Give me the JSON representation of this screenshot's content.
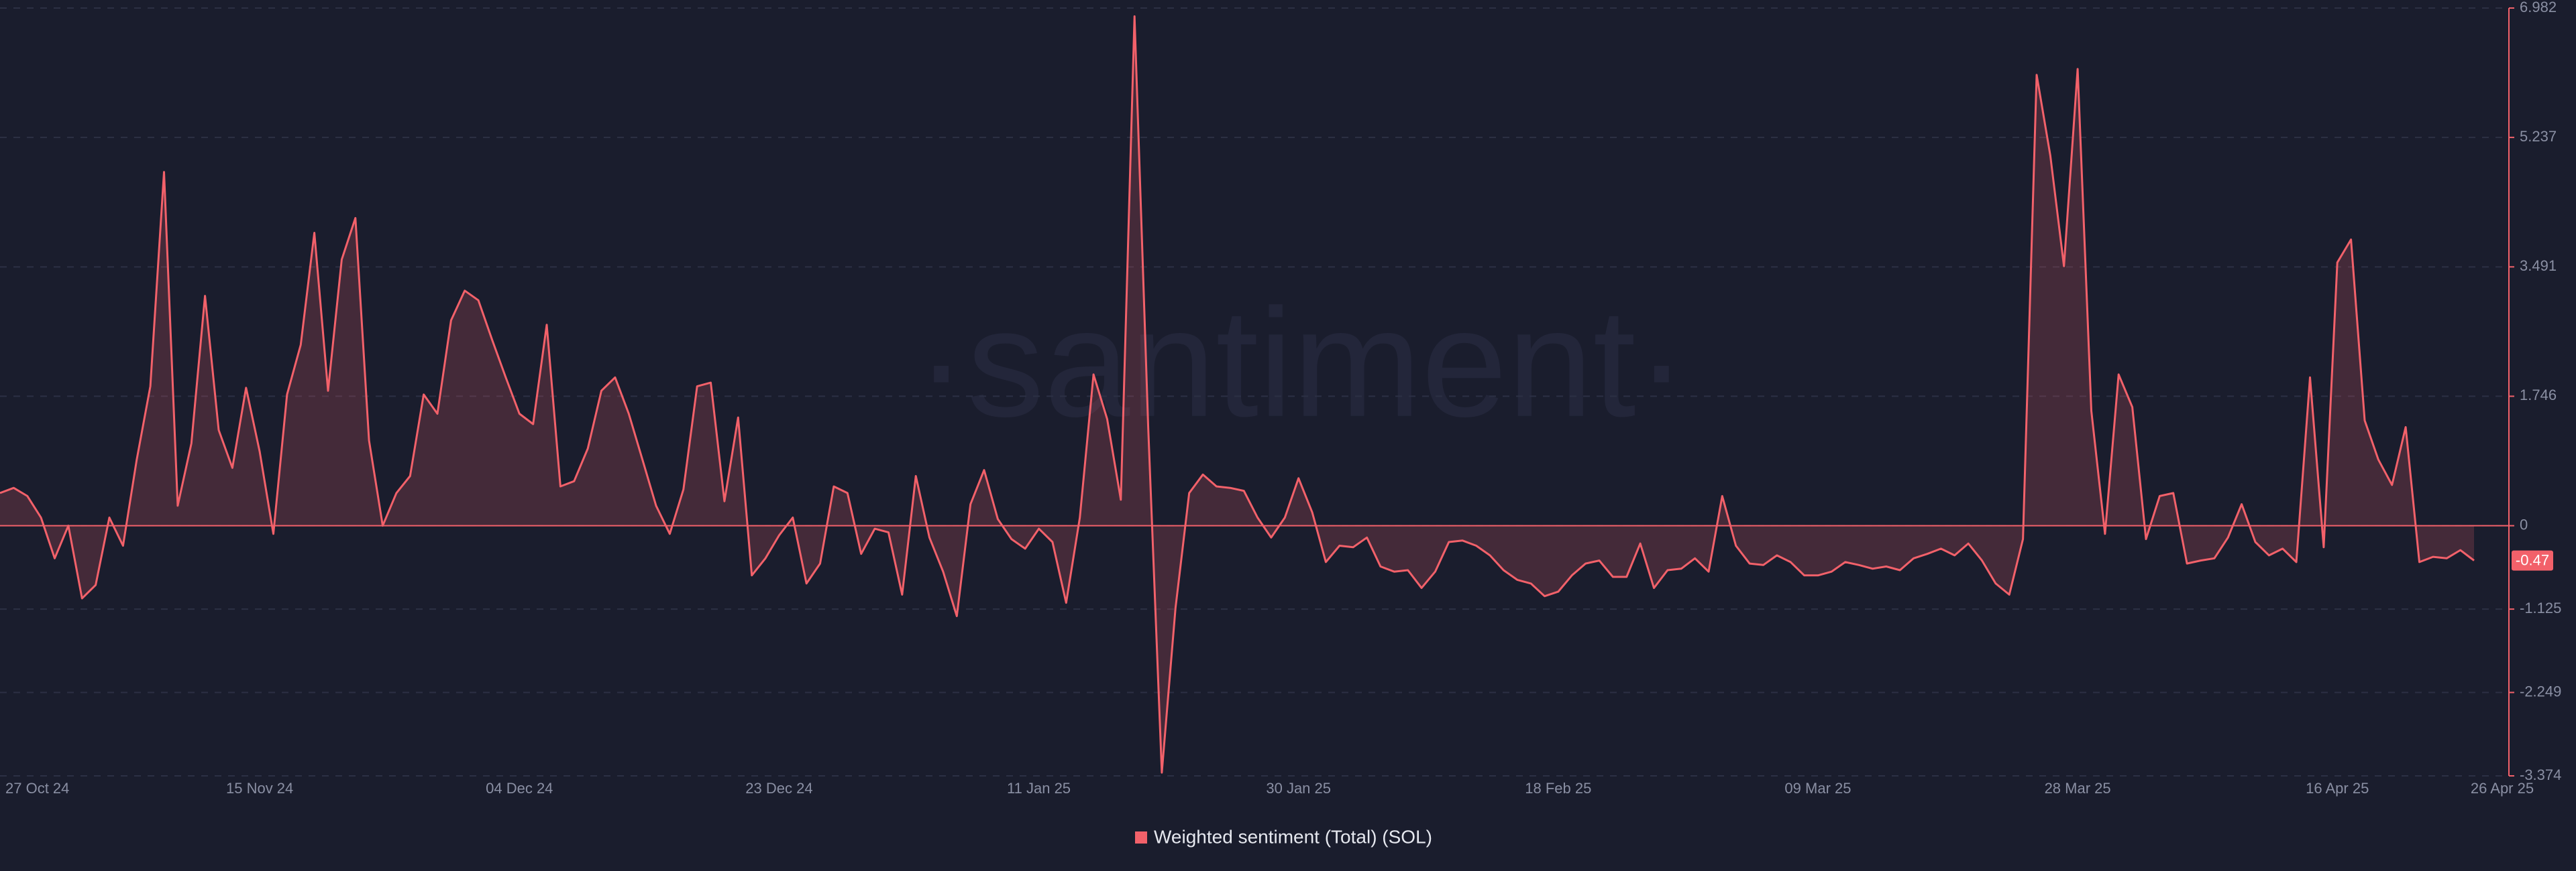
{
  "chart_data": {
    "type": "line",
    "watermark": "·santiment·",
    "categories": [
      "27 Oct 24",
      null,
      null,
      null,
      null,
      null,
      null,
      null,
      null,
      null,
      null,
      null,
      null,
      null,
      null,
      null,
      null,
      null,
      null,
      "15 Nov 24",
      null,
      null,
      null,
      null,
      null,
      null,
      null,
      null,
      null,
      null,
      null,
      null,
      null,
      null,
      null,
      null,
      null,
      null,
      "04 Dec 24",
      null,
      null,
      null,
      null,
      null,
      null,
      null,
      null,
      null,
      null,
      null,
      null,
      null,
      null,
      null,
      null,
      null,
      null,
      "23 Dec 24",
      null,
      null,
      null,
      null,
      null,
      null,
      null,
      null,
      null,
      null,
      null,
      null,
      null,
      null,
      null,
      null,
      null,
      null,
      "11 Jan 25",
      null,
      null,
      null,
      null,
      null,
      null,
      null,
      null,
      null,
      null,
      null,
      null,
      null,
      null,
      null,
      null,
      null,
      null,
      "30 Jan 25",
      null,
      null,
      null,
      null,
      null,
      null,
      null,
      null,
      null,
      null,
      null,
      null,
      null,
      null,
      null,
      null,
      null,
      null,
      "18 Feb 25",
      null,
      null,
      null,
      null,
      null,
      null,
      null,
      null,
      null,
      null,
      null,
      null,
      null,
      null,
      null,
      null,
      null,
      null,
      "09 Mar 25",
      null,
      null,
      null,
      null,
      null,
      null,
      null,
      null,
      null,
      null,
      null,
      null,
      null,
      null,
      null,
      null,
      null,
      null,
      "28 Mar 25",
      null,
      null,
      null,
      null,
      null,
      null,
      null,
      null,
      null,
      null,
      null,
      null,
      null,
      null,
      null,
      null,
      null,
      null,
      "16 Apr 25",
      null,
      null,
      null,
      null,
      null,
      null,
      null,
      null,
      null,
      "26 Apr 25"
    ],
    "series": [
      {
        "name": "Weighted sentiment (Total) (SOL)",
        "color": "#f2616a",
        "values": [
          0.44,
          0.51,
          0.4,
          0.11,
          -0.44,
          0,
          -0.98,
          -0.8,
          0.11,
          -0.27,
          0.89,
          1.88,
          4.77,
          0.27,
          1.11,
          3.1,
          1.29,
          0.78,
          1.86,
          1.0,
          -0.11,
          1.77,
          2.44,
          3.95,
          1.82,
          3.59,
          4.15,
          1.15,
          0,
          0.44,
          0.67,
          1.77,
          1.51,
          2.77,
          3.17,
          3.04,
          2.51,
          2.0,
          1.51,
          1.37,
          2.71,
          0.53,
          0.6,
          1.04,
          1.82,
          2.0,
          1.51,
          0.89,
          0.27,
          -0.11,
          0.49,
          1.88,
          1.93,
          0.33,
          1.46,
          -0.67,
          -0.44,
          -0.13,
          0.11,
          -0.78,
          -0.51,
          0.53,
          0.44,
          -0.38,
          -0.04,
          -0.09,
          -0.93,
          0.67,
          -0.16,
          -0.62,
          -1.22,
          0.29,
          0.75,
          0.09,
          -0.18,
          -0.31,
          -0.04,
          -0.22,
          -1.04,
          0.11,
          2.04,
          1.44,
          0.35,
          6.87,
          1.33,
          -3.33,
          -1.11,
          0.44,
          0.69,
          0.53,
          0.51,
          0.47,
          0.11,
          -0.16,
          0.11,
          0.64,
          0.18,
          -0.49,
          -0.27,
          -0.29,
          -0.16,
          -0.55,
          -0.62,
          -0.6,
          -0.84,
          -0.62,
          -0.22,
          -0.2,
          -0.27,
          -0.4,
          -0.6,
          -0.73,
          -0.78,
          -0.95,
          -0.89,
          -0.67,
          -0.51,
          -0.47,
          -0.69,
          -0.69,
          -0.24,
          -0.84,
          -0.6,
          -0.58,
          -0.44,
          -0.62,
          0.4,
          -0.27,
          -0.51,
          -0.53,
          -0.4,
          -0.49,
          -0.67,
          -0.67,
          -0.62,
          -0.49,
          -0.53,
          -0.58,
          -0.55,
          -0.6,
          -0.44,
          -0.38,
          -0.31,
          -0.4,
          -0.24,
          -0.47,
          -0.78,
          -0.93,
          -0.18,
          6.08,
          4.99,
          3.5,
          6.16,
          1.55,
          -0.11,
          2.04,
          1.6,
          -0.18,
          0.4,
          0.44,
          -0.51,
          -0.47,
          -0.44,
          -0.16,
          0.29,
          -0.22,
          -0.4,
          -0.31,
          -0.49,
          2.0,
          -0.29,
          3.55,
          3.86,
          1.42,
          0.89,
          0.55,
          1.33,
          -0.49,
          -0.42,
          -0.44,
          -0.33,
          -0.47
        ]
      }
    ],
    "ylim": [
      -3.374,
      6.982
    ],
    "yticks": [
      6.982,
      5.237,
      3.491,
      1.746,
      0,
      -1.125,
      -2.249,
      -3.374
    ],
    "grid": true
  }
}
